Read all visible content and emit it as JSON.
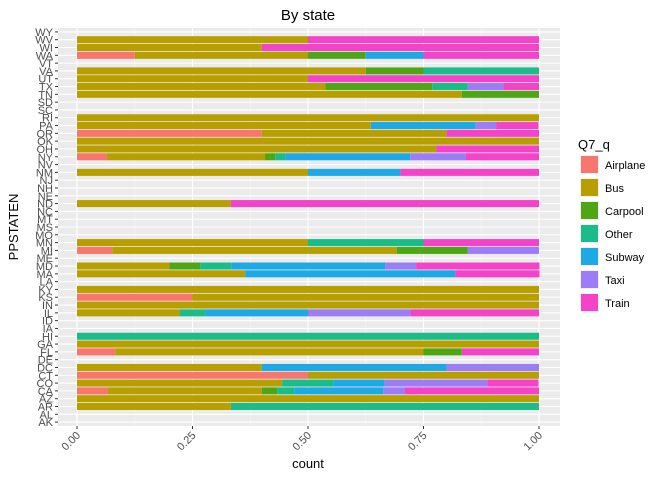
{
  "chart_data": {
    "type": "bar",
    "orientation": "horizontal",
    "stacked": true,
    "normalized": true,
    "title": "By state",
    "xlabel": "count",
    "ylabel": "PPSTATEN",
    "xlim": [
      0,
      1
    ],
    "x_ticks": [
      "0.00",
      "0.25",
      "0.50",
      "0.75",
      "1.00"
    ],
    "x_tick_values": [
      0,
      0.25,
      0.5,
      0.75,
      1
    ],
    "grid": true,
    "legend": {
      "title": "Q7_q",
      "placement": "right",
      "entries": [
        {
          "name": "Airplane",
          "color": "#F8766D"
        },
        {
          "name": "Bus",
          "color": "#B79F00"
        },
        {
          "name": "Carpool",
          "color": "#4EA615"
        },
        {
          "name": "Other",
          "color": "#1ABC8A"
        },
        {
          "name": "Subway",
          "color": "#1CA9E6"
        },
        {
          "name": "Taxi",
          "color": "#9B7DF7"
        },
        {
          "name": "Train",
          "color": "#F442C9"
        }
      ]
    },
    "categories": [
      "AK",
      "AL",
      "AR",
      "AZ",
      "CA",
      "CO",
      "CT",
      "DC",
      "DE",
      "FL",
      "GA",
      "HI",
      "IA",
      "ID",
      "IL",
      "IN",
      "KS",
      "KY",
      "LA",
      "MA",
      "MD",
      "ME",
      "MI",
      "MN",
      "MO",
      "MS",
      "MT",
      "NC",
      "ND",
      "NE",
      "NH",
      "NJ",
      "NM",
      "NV",
      "NY",
      "OH",
      "OK",
      "OR",
      "PA",
      "RI",
      "SC",
      "SD",
      "TN",
      "TX",
      "UT",
      "VA",
      "VT",
      "WA",
      "WI",
      "WV",
      "WY"
    ],
    "series": [
      {
        "name": "Airplane",
        "values": [
          0,
          0,
          0,
          0,
          0.067,
          0,
          0.5,
          0,
          0,
          0.083,
          0,
          0,
          0,
          0,
          0,
          0,
          0.25,
          0,
          0,
          0,
          0,
          0,
          0.077,
          0,
          0,
          0,
          0,
          0,
          0,
          0,
          0,
          0,
          0,
          0,
          0.065,
          0,
          0,
          0.4,
          0,
          0,
          0,
          0,
          0,
          0,
          0,
          0,
          0,
          0.125,
          0,
          0,
          0
        ]
      },
      {
        "name": "Bus",
        "values": [
          0,
          0,
          0.333,
          1,
          0.333,
          0.444,
          0.5,
          0.4,
          0,
          0.667,
          1,
          0,
          0,
          0,
          0.222,
          1,
          0.75,
          1,
          0,
          0.364,
          0.2,
          0,
          0.615,
          0.5,
          0,
          0,
          0,
          0,
          0.333,
          0,
          0,
          0,
          0.5,
          0,
          0.342,
          0.778,
          1,
          0.4,
          0.636,
          1,
          0,
          0,
          0.833,
          0.538,
          0.5,
          0.625,
          0,
          0.375,
          0.4,
          0.5,
          0
        ]
      },
      {
        "name": "Carpool",
        "values": [
          0,
          0,
          0,
          0,
          0.033,
          0,
          0,
          0,
          0,
          0.083,
          0,
          0,
          0,
          0,
          0,
          0,
          0,
          0,
          0,
          0,
          0.067,
          0,
          0.154,
          0,
          0,
          0,
          0,
          0,
          0,
          0,
          0,
          0,
          0,
          0,
          0.022,
          0,
          0,
          0,
          0,
          0,
          0,
          0,
          0.167,
          0.231,
          0,
          0.125,
          0,
          0.125,
          0,
          0,
          0
        ]
      },
      {
        "name": "Other",
        "values": [
          0,
          0,
          0.667,
          0,
          0.037,
          0.111,
          0,
          0,
          0,
          0,
          0,
          1,
          0,
          0,
          0.056,
          0,
          0,
          0,
          0,
          0,
          0.067,
          0,
          0,
          0.25,
          0,
          0,
          0,
          0,
          0,
          0,
          0,
          0,
          0,
          0,
          0.022,
          0,
          0,
          0,
          0,
          0,
          0,
          0,
          0,
          0.077,
          0,
          0.25,
          0,
          0,
          0,
          0,
          0
        ]
      },
      {
        "name": "Subway",
        "values": [
          0,
          0,
          0,
          0,
          0.193,
          0.111,
          0,
          0.4,
          0,
          0,
          0,
          0,
          0,
          0,
          0.222,
          0,
          0,
          0,
          0,
          0.455,
          0.333,
          0,
          0,
          0,
          0,
          0,
          0,
          0,
          0,
          0,
          0,
          0,
          0.2,
          0,
          0.27,
          0,
          0,
          0,
          0.227,
          0,
          0,
          0,
          0,
          0,
          0,
          0,
          0,
          0.125,
          0,
          0,
          0
        ]
      },
      {
        "name": "Taxi",
        "values": [
          0,
          0,
          0,
          0,
          0.047,
          0.222,
          0,
          0.2,
          0,
          0,
          0,
          0,
          0,
          0,
          0.222,
          0,
          0,
          0,
          0,
          0,
          0.067,
          0,
          0.154,
          0,
          0,
          0,
          0,
          0,
          0,
          0,
          0,
          0,
          0,
          0,
          0.121,
          0,
          0,
          0,
          0.045,
          0,
          0,
          0,
          0,
          0.077,
          0,
          0,
          0,
          0,
          0,
          0,
          0
        ]
      },
      {
        "name": "Train",
        "values": [
          0,
          0,
          0,
          0,
          0.29,
          0.111,
          0,
          0,
          0,
          0.167,
          0,
          0,
          0,
          0,
          0.278,
          0,
          0,
          0,
          0,
          0.182,
          0.267,
          0,
          0,
          0.25,
          0,
          0,
          0,
          0,
          0.667,
          0,
          0,
          0,
          0.3,
          0,
          0.158,
          0.222,
          0,
          0.2,
          0.091,
          0,
          0,
          0,
          0,
          0.077,
          0.5,
          0,
          0,
          0.25,
          0.6,
          0.5,
          0
        ]
      }
    ]
  }
}
